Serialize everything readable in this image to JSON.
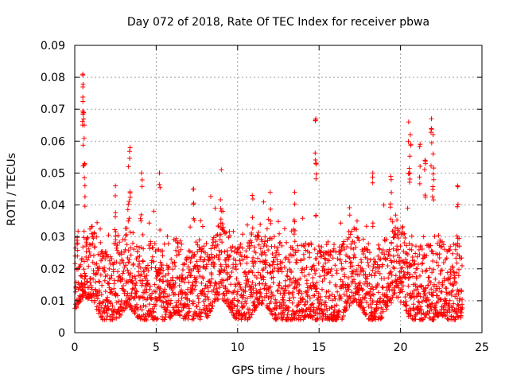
{
  "chart_data": {
    "type": "scatter",
    "title": "Day 072 of 2018, Rate Of TEC Index for receiver pbwa",
    "xlabel": "GPS time / hours",
    "ylabel": "ROTI / TECUs",
    "xlim": [
      0,
      25
    ],
    "ylim": [
      0,
      0.09
    ],
    "xticks": [
      0,
      5,
      10,
      15,
      20,
      25
    ],
    "yticks": [
      0,
      0.01,
      0.02,
      0.03,
      0.04,
      0.05,
      0.06,
      0.07,
      0.08,
      0.09
    ],
    "xtick_labels": [
      "0",
      "5",
      "10",
      "15",
      "20",
      "25"
    ],
    "ytick_labels": [
      "0",
      "0.01",
      "0.02",
      "0.03",
      "0.04",
      "0.05",
      "0.06",
      "0.07",
      "0.08",
      "0.09"
    ],
    "grid": true,
    "marker": "+",
    "color": "#ff0000",
    "x_data_range": [
      0,
      23.8
    ],
    "series": [
      {
        "name": "ROTI",
        "description": "dense scatter, bulk 0.005-0.025 TECU, spikes to ~0.081",
        "peaks": [
          {
            "x": 0.5,
            "y": 0.081
          },
          {
            "x": 0.5,
            "y": 0.077
          },
          {
            "x": 0.55,
            "y": 0.069
          },
          {
            "x": 0.6,
            "y": 0.053
          },
          {
            "x": 3.4,
            "y": 0.058
          },
          {
            "x": 3.3,
            "y": 0.052
          },
          {
            "x": 5.2,
            "y": 0.05
          },
          {
            "x": 4.1,
            "y": 0.05
          },
          {
            "x": 9.0,
            "y": 0.051
          },
          {
            "x": 7.3,
            "y": 0.045
          },
          {
            "x": 14.8,
            "y": 0.067
          },
          {
            "x": 14.8,
            "y": 0.053
          },
          {
            "x": 18.3,
            "y": 0.05
          },
          {
            "x": 19.4,
            "y": 0.049
          },
          {
            "x": 20.5,
            "y": 0.066
          },
          {
            "x": 20.6,
            "y": 0.062
          },
          {
            "x": 21.2,
            "y": 0.059
          },
          {
            "x": 21.9,
            "y": 0.067
          },
          {
            "x": 22.0,
            "y": 0.062
          },
          {
            "x": 22.0,
            "y": 0.056
          },
          {
            "x": 21.5,
            "y": 0.054
          },
          {
            "x": 23.5,
            "y": 0.046
          },
          {
            "x": 2.5,
            "y": 0.046
          },
          {
            "x": 12.0,
            "y": 0.044
          },
          {
            "x": 13.5,
            "y": 0.044
          },
          {
            "x": 10.9,
            "y": 0.043
          }
        ]
      }
    ]
  }
}
